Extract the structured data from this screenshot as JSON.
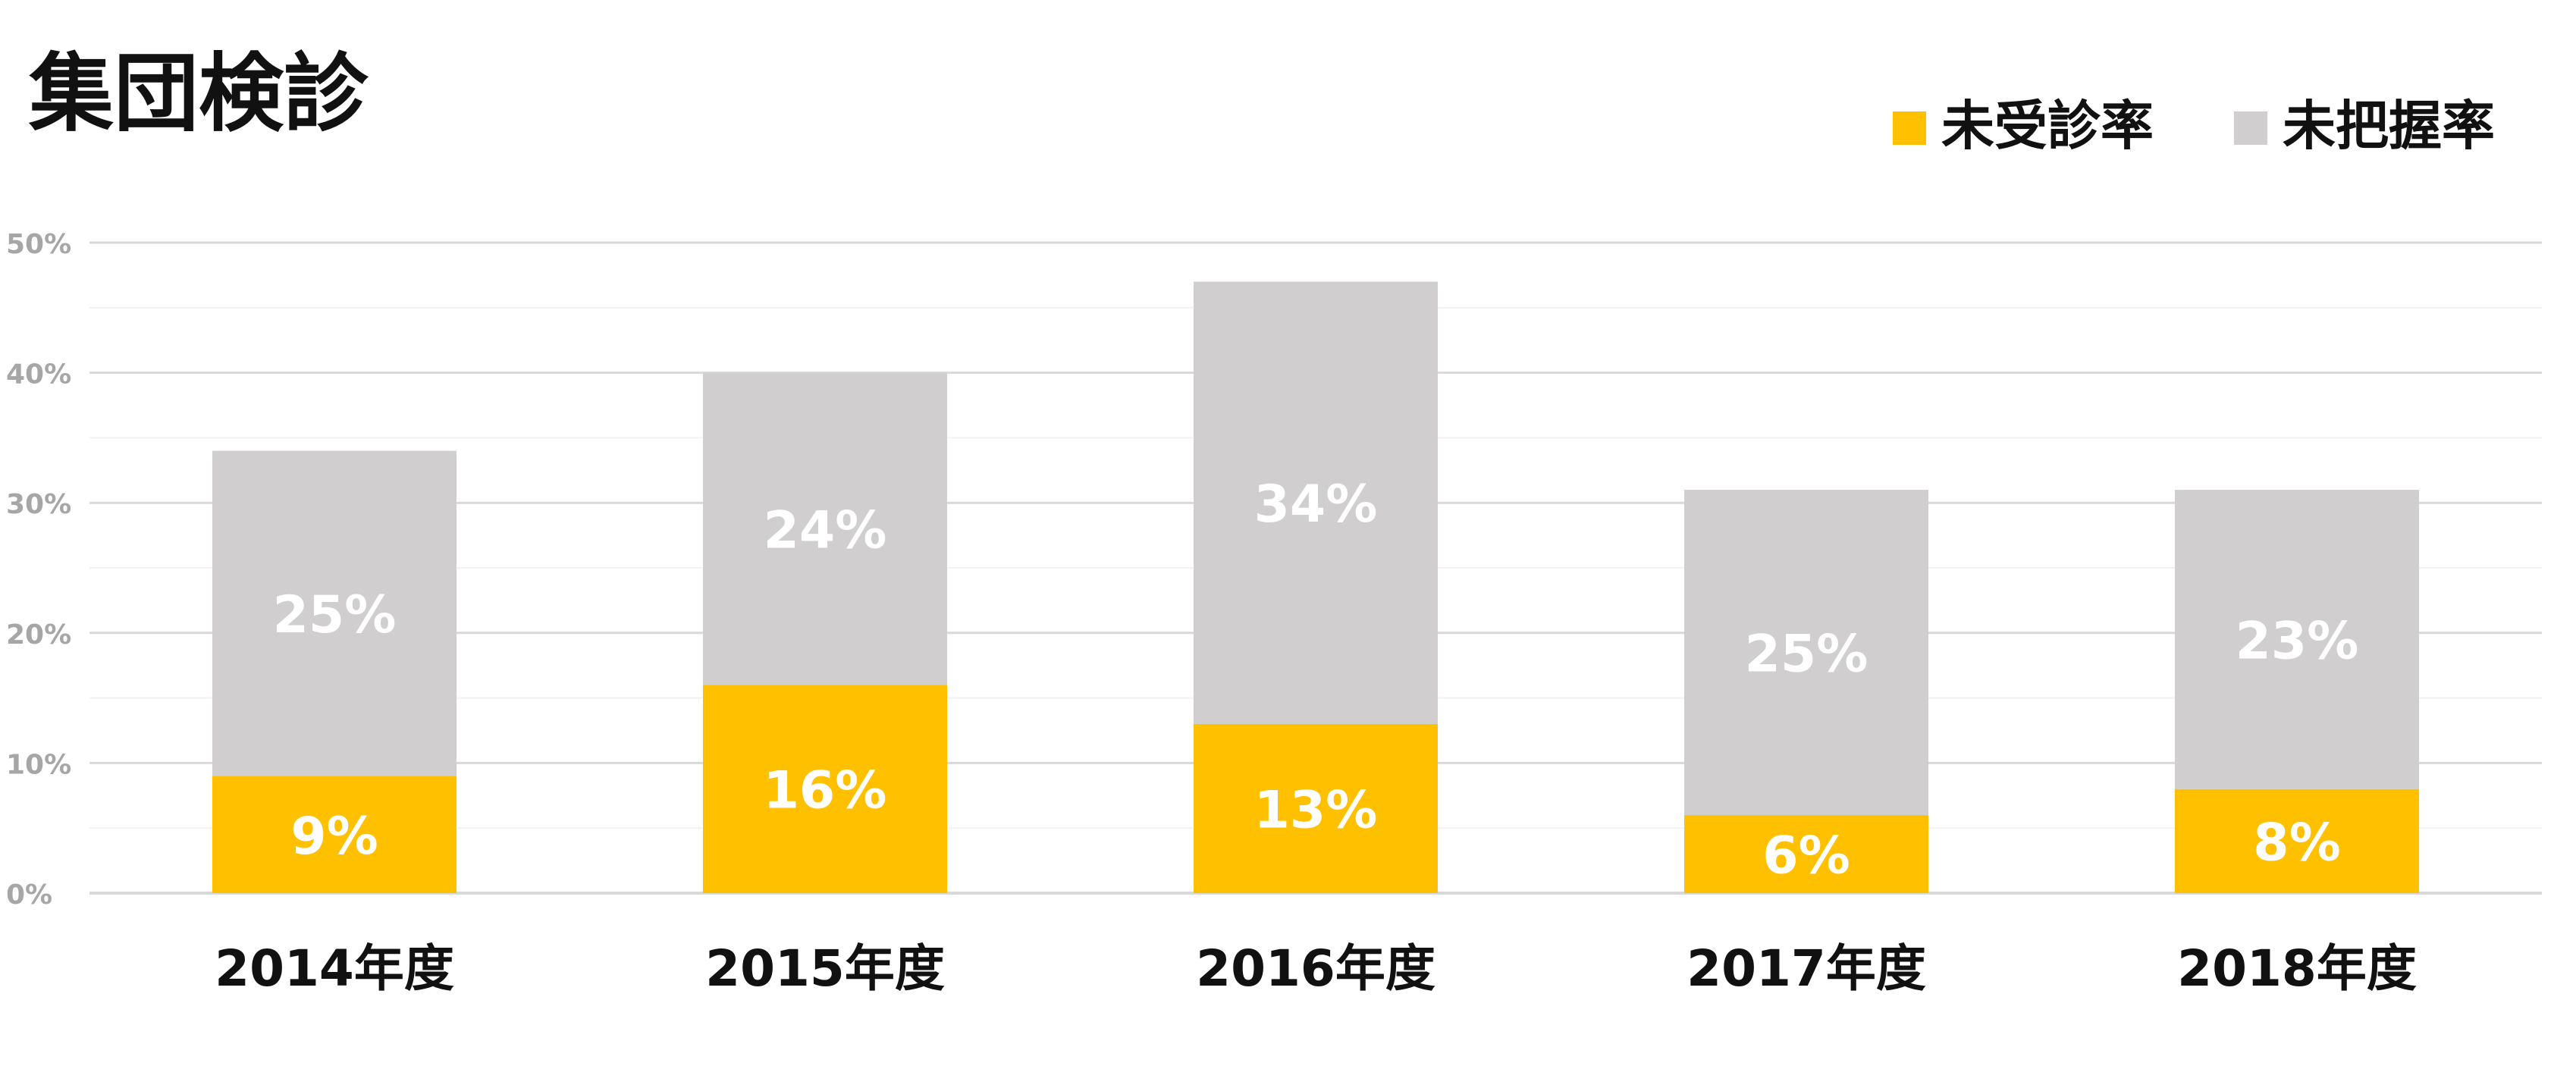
{
  "chart_data": {
    "type": "bar",
    "stacked": true,
    "title": "集団検診",
    "categories": [
      "2014年度",
      "2015年度",
      "2016年度",
      "2017年度",
      "2018年度"
    ],
    "series": [
      {
        "name": "未受診率",
        "color": "#FFC000",
        "values": [
          9,
          16,
          13,
          6,
          8
        ]
      },
      {
        "name": "未把握率",
        "color": "#D0CECE",
        "values": [
          25,
          24,
          34,
          25,
          23
        ]
      }
    ],
    "y_ticks": [
      "0%",
      "10%",
      "20%",
      "30%",
      "40%",
      "50%"
    ],
    "ylim": [
      0,
      50
    ],
    "grid": true,
    "legend_position": "top-right",
    "data_label_suffix": "%"
  }
}
